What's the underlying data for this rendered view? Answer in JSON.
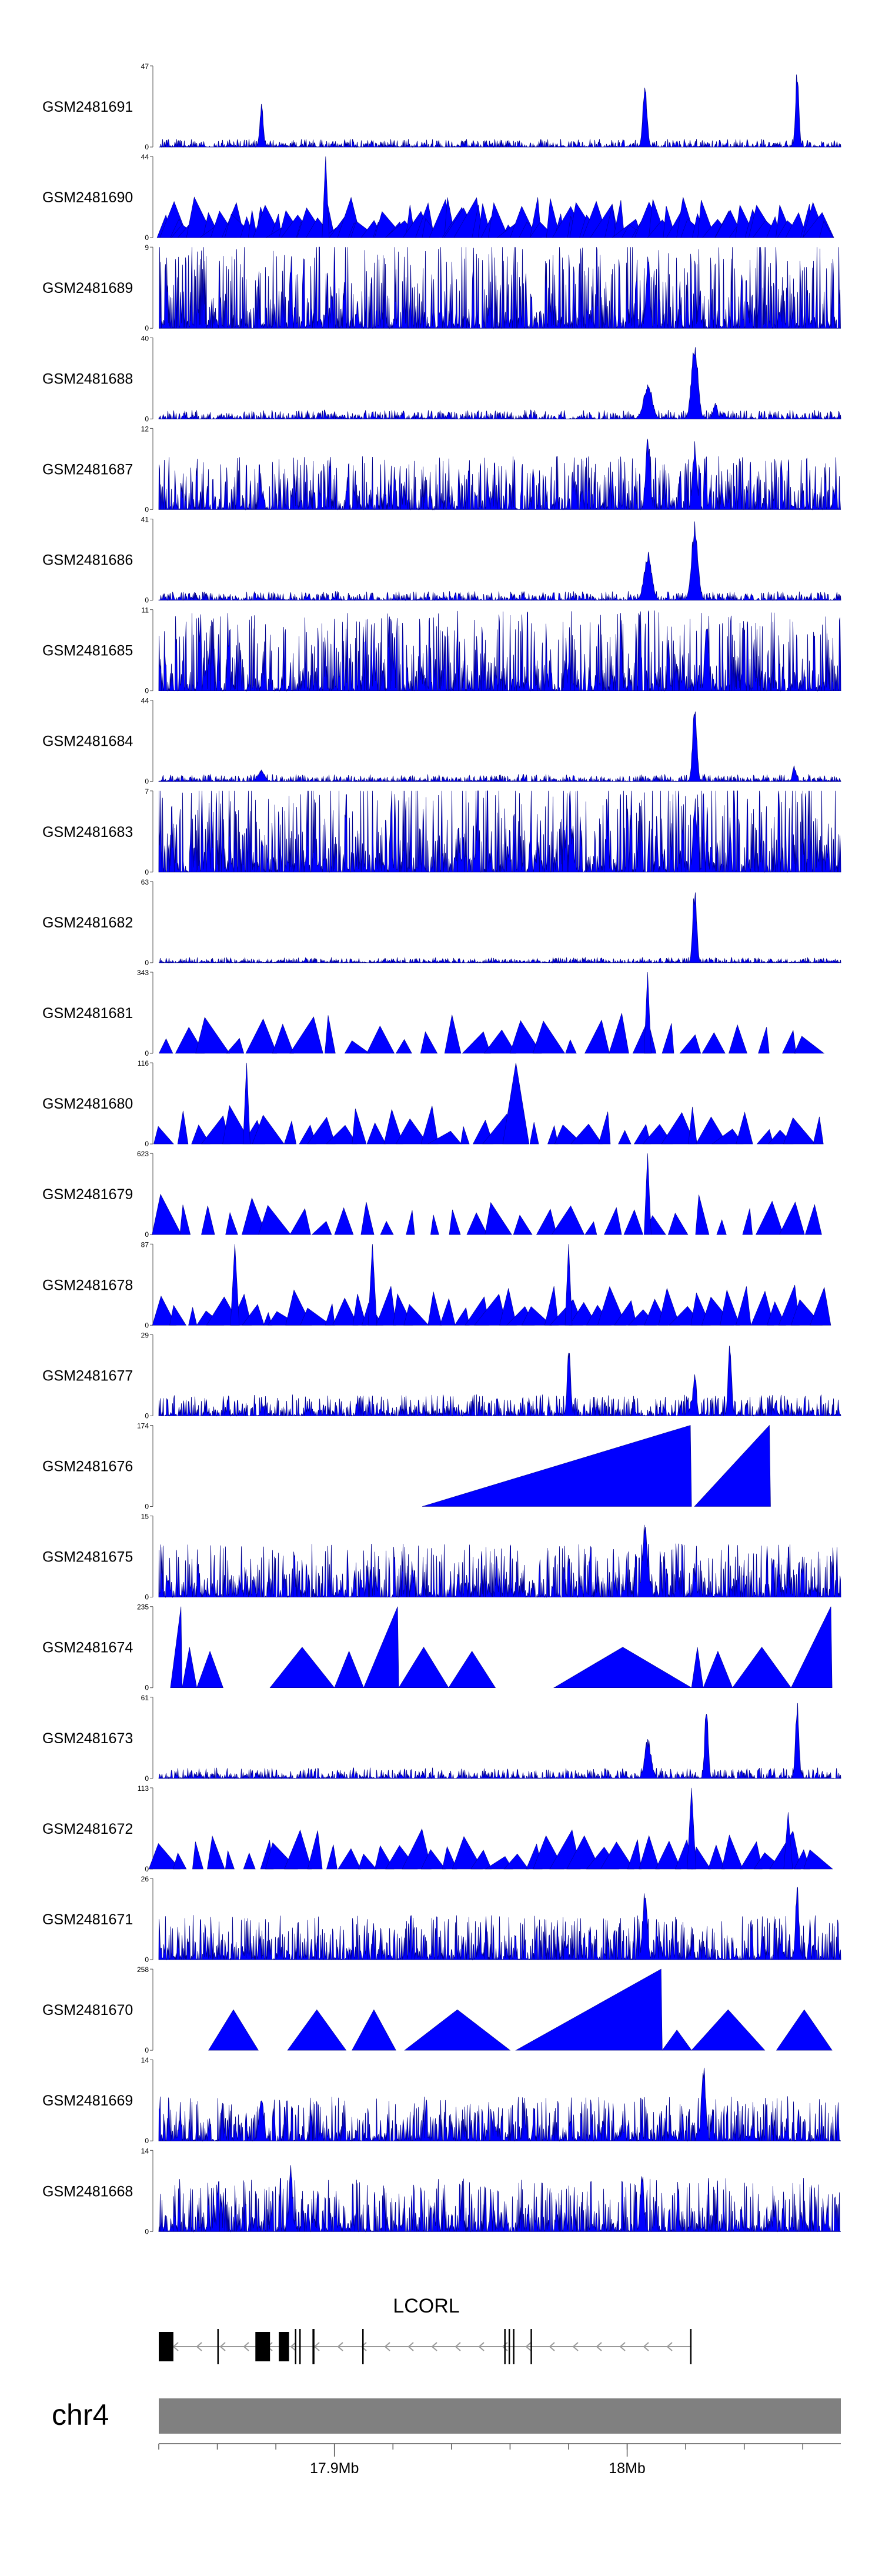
{
  "colors": {
    "signal": "#0000FF",
    "signal_edge": "#00008B",
    "axis": "#555555",
    "chromosome_bar": "#808080",
    "gene": "#000000"
  },
  "chart_data": {
    "type": "area",
    "title": "",
    "xlabel": "",
    "ylabel": "",
    "region": {
      "chromosome": "chr4",
      "start_mb": 17.84,
      "end_mb": 18.073
    },
    "position_ticks": [
      {
        "mb": 17.9,
        "label": "17.9Mb"
      },
      {
        "mb": 18.0,
        "label": "18Mb"
      }
    ],
    "gene": {
      "name": "LCORL",
      "strand": "-",
      "start_mb": 17.84,
      "end_mb": 18.022,
      "exons_mb": [
        [
          17.84,
          17.845
        ],
        [
          17.86,
          17.8605
        ],
        [
          17.873,
          17.878
        ],
        [
          17.881,
          17.8845
        ],
        [
          17.8865,
          17.887
        ],
        [
          17.888,
          17.8885
        ],
        [
          17.8925,
          17.8932
        ],
        [
          17.9095,
          17.91
        ],
        [
          17.958,
          17.9585
        ],
        [
          17.9595,
          17.96
        ],
        [
          17.961,
          17.9615
        ],
        [
          17.967,
          17.9675
        ],
        [
          18.0215,
          18.022
        ]
      ]
    },
    "series": [
      {
        "name": "GSM2481691",
        "ymax": "47",
        "ymin": "0",
        "style": "dense",
        "level": 0.045,
        "peaks": [
          [
            17.875,
            0.55,
            0.0008
          ],
          [
            18.006,
            0.8,
            0.001
          ],
          [
            18.058,
            1.0,
            0.0008
          ]
        ]
      },
      {
        "name": "GSM2481690",
        "ymax": "44",
        "ymin": "0",
        "style": "sparse",
        "count": 90,
        "peaks": [
          [
            17.897,
            1.0,
            0.0006
          ]
        ]
      },
      {
        "name": "GSM2481689",
        "ymax": "9",
        "ymin": "0",
        "style": "dense",
        "level": 0.5,
        "peaks": [
          [
            18.007,
            1.0,
            0.0008
          ]
        ]
      },
      {
        "name": "GSM2481688",
        "ymax": "40",
        "ymin": "0",
        "style": "dense",
        "level": 0.05,
        "peaks": [
          [
            18.007,
            0.45,
            0.002
          ],
          [
            18.023,
            1.0,
            0.0015
          ],
          [
            18.03,
            0.2,
            0.001
          ]
        ]
      },
      {
        "name": "GSM2481687",
        "ymax": "12",
        "ymin": "0",
        "style": "dense",
        "level": 0.3,
        "peaks": [
          [
            18.007,
            1.0,
            0.001
          ],
          [
            18.023,
            0.85,
            0.001
          ]
        ]
      },
      {
        "name": "GSM2481686",
        "ymax": "41",
        "ymin": "0",
        "style": "dense",
        "level": 0.05,
        "peaks": [
          [
            18.007,
            0.6,
            0.0018
          ],
          [
            18.023,
            1.0,
            0.0015
          ]
        ]
      },
      {
        "name": "GSM2481685",
        "ymax": "11",
        "ymin": "0",
        "style": "dense",
        "level": 0.45,
        "peaks": [
          [
            18.027,
            1.0,
            0.0008
          ]
        ]
      },
      {
        "name": "GSM2481684",
        "ymax": "44",
        "ymin": "0",
        "style": "dense",
        "level": 0.04,
        "peaks": [
          [
            17.875,
            0.15,
            0.0015
          ],
          [
            18.023,
            1.0,
            0.001
          ],
          [
            18.057,
            0.2,
            0.0008
          ]
        ]
      },
      {
        "name": "GSM2481683",
        "ymax": "7",
        "ymin": "0",
        "style": "dense",
        "level": 0.55,
        "peaks": [
          [
            18.023,
            1.0,
            0.0008
          ]
        ]
      },
      {
        "name": "GSM2481682",
        "ymax": "63",
        "ymin": "0",
        "style": "dense",
        "level": 0.03,
        "peaks": [
          [
            18.023,
            1.0,
            0.0009
          ]
        ]
      },
      {
        "name": "GSM2481681",
        "ymax": "343",
        "ymin": "0",
        "style": "sparse",
        "count": 28,
        "peaks": [
          [
            18.007,
            1.0,
            0.0006
          ]
        ]
      },
      {
        "name": "GSM2481680",
        "ymax": "116",
        "ymin": "0",
        "style": "sparse",
        "count": 38,
        "peaks": [
          [
            17.87,
            1.0,
            0.0008
          ],
          [
            17.962,
            1.0,
            0.003
          ]
        ]
      },
      {
        "name": "GSM2481679",
        "ymax": "623",
        "ymin": "0",
        "style": "sparse",
        "count": 30,
        "peaks": [
          [
            18.007,
            1.0,
            0.0008
          ]
        ]
      },
      {
        "name": "GSM2481678",
        "ymax": "87",
        "ymin": "0",
        "style": "sparse",
        "count": 45,
        "peaks": [
          [
            17.866,
            1.0,
            0.001
          ],
          [
            17.913,
            1.0,
            0.001
          ],
          [
            17.98,
            1.0,
            0.0008
          ]
        ]
      },
      {
        "name": "GSM2481677",
        "ymax": "29",
        "ymin": "0",
        "style": "dense",
        "level": 0.12,
        "peaks": [
          [
            17.98,
            0.9,
            0.0008
          ],
          [
            18.035,
            0.95,
            0.0008
          ],
          [
            18.023,
            0.6,
            0.0008
          ]
        ]
      },
      {
        "name": "GSM2481676",
        "ymax": "174",
        "ymin": "0",
        "style": "triangles",
        "tris": [
          [
            17.93,
            18.022,
            1.0
          ],
          [
            18.023,
            18.049,
            1.0
          ]
        ]
      },
      {
        "name": "GSM2481675",
        "ymax": "15",
        "ymin": "0",
        "style": "dense",
        "level": 0.3,
        "peaks": [
          [
            18.006,
            1.0,
            0.001
          ]
        ]
      },
      {
        "name": "GSM2481674",
        "ymax": "235",
        "ymin": "0",
        "style": "triangles",
        "tris": [
          [
            17.844,
            17.848,
            1.0
          ],
          [
            17.848,
            17.853,
            0.5
          ],
          [
            17.853,
            17.862,
            0.45
          ],
          [
            17.878,
            17.9,
            0.5
          ],
          [
            17.9,
            17.91,
            0.45
          ],
          [
            17.91,
            17.922,
            1.0
          ],
          [
            17.922,
            17.939,
            0.5
          ],
          [
            17.939,
            17.955,
            0.45
          ],
          [
            17.975,
            18.022,
            0.5
          ],
          [
            18.022,
            18.026,
            0.5
          ],
          [
            18.026,
            18.036,
            0.45
          ],
          [
            18.036,
            18.056,
            0.5
          ],
          [
            18.056,
            18.07,
            1.0
          ]
        ]
      },
      {
        "name": "GSM2481673",
        "ymax": "61",
        "ymin": "0",
        "style": "dense",
        "level": 0.06,
        "peaks": [
          [
            18.007,
            0.5,
            0.0015
          ],
          [
            18.027,
            1.0,
            0.0008
          ],
          [
            18.058,
            1.0,
            0.0008
          ]
        ]
      },
      {
        "name": "GSM2481672",
        "ymax": "113",
        "ymin": "0",
        "style": "sparse",
        "count": 40,
        "peaks": [
          [
            18.022,
            1.0,
            0.001
          ],
          [
            18.055,
            0.7,
            0.001
          ]
        ]
      },
      {
        "name": "GSM2481671",
        "ymax": "26",
        "ymin": "0",
        "style": "dense",
        "level": 0.25,
        "peaks": [
          [
            18.006,
            0.9,
            0.001
          ],
          [
            18.058,
            0.95,
            0.0008
          ]
        ]
      },
      {
        "name": "GSM2481670",
        "ymax": "258",
        "ymin": "0",
        "style": "triangles",
        "tris": [
          [
            17.857,
            17.874,
            0.5
          ],
          [
            17.884,
            17.904,
            0.5
          ],
          [
            17.906,
            17.921,
            0.5
          ],
          [
            17.924,
            17.96,
            0.5
          ],
          [
            17.962,
            18.012,
            1.0
          ],
          [
            18.012,
            18.022,
            0.25
          ],
          [
            18.022,
            18.047,
            0.5
          ],
          [
            18.051,
            18.07,
            0.5
          ]
        ]
      },
      {
        "name": "GSM2481669",
        "ymax": "14",
        "ymin": "0",
        "style": "dense",
        "level": 0.25,
        "peaks": [
          [
            18.026,
            1.0,
            0.001
          ],
          [
            17.875,
            0.6,
            0.001
          ]
        ]
      },
      {
        "name": "GSM2481668",
        "ymax": "14",
        "ymin": "0",
        "style": "dense",
        "level": 0.3,
        "peaks": [
          [
            17.885,
            0.85,
            0.0008
          ],
          [
            18.005,
            0.8,
            0.0008
          ]
        ]
      }
    ]
  }
}
